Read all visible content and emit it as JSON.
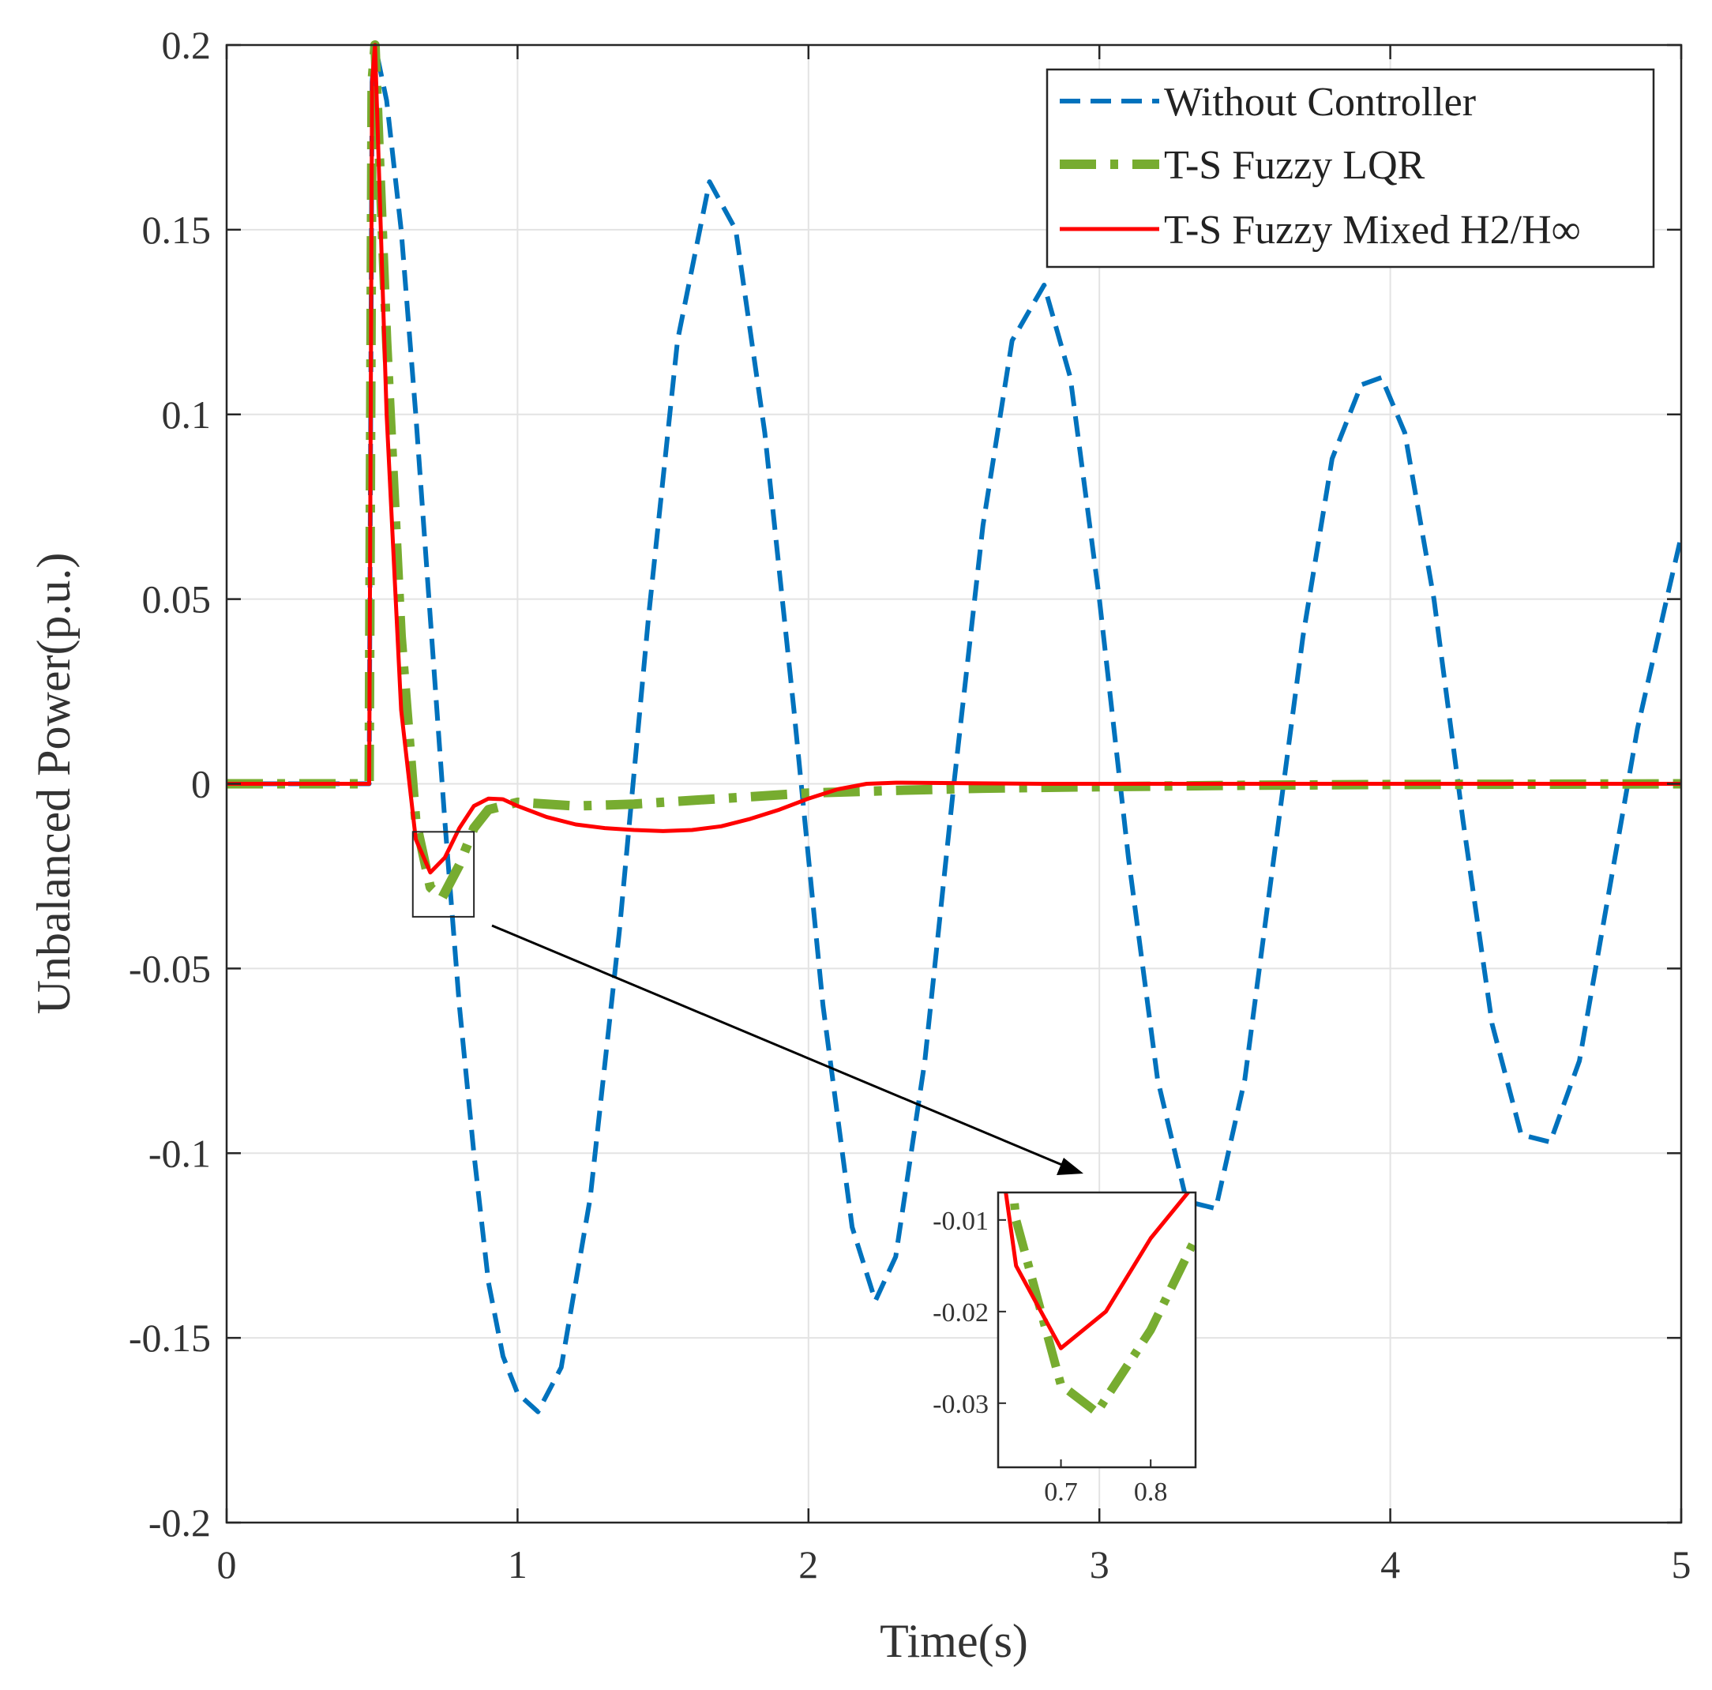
{
  "chart_data": {
    "type": "line",
    "title": "",
    "xlabel": "Time(s)",
    "ylabel": "Unbalanced Power(p.u.)",
    "xlim": [
      0,
      5
    ],
    "ylim": [
      -0.2,
      0.2
    ],
    "xticks": [
      "0",
      "1",
      "2",
      "3",
      "4",
      "5"
    ],
    "yticks": [
      "0.2",
      "0.15",
      "0.1",
      "0.05",
      "0",
      "-0.05",
      "-0.1",
      "-0.15",
      "-0.2"
    ],
    "grid": true,
    "legend_position": "top-right",
    "series": [
      {
        "name": "Without Controller",
        "color": "#0072BD",
        "style": "dashed",
        "x": [
          0,
          0.49,
          0.5,
          0.51,
          0.55,
          0.6,
          0.65,
          0.7,
          0.75,
          0.8,
          0.85,
          0.9,
          0.95,
          1.0,
          1.07,
          1.15,
          1.25,
          1.35,
          1.45,
          1.55,
          1.66,
          1.75,
          1.85,
          1.95,
          2.05,
          2.15,
          2.23,
          2.3,
          2.4,
          2.5,
          2.6,
          2.7,
          2.81,
          2.9,
          3.0,
          3.1,
          3.2,
          3.3,
          3.4,
          3.5,
          3.6,
          3.7,
          3.8,
          3.9,
          3.97,
          4.05,
          4.15,
          4.25,
          4.35,
          4.45,
          4.55,
          4.65,
          4.75,
          4.85,
          4.95,
          5.0
        ],
        "y": [
          0,
          0,
          0.19,
          0.2,
          0.185,
          0.15,
          0.1,
          0.045,
          -0.01,
          -0.06,
          -0.1,
          -0.135,
          -0.155,
          -0.165,
          -0.17,
          -0.158,
          -0.112,
          -0.04,
          0.045,
          0.12,
          0.163,
          0.15,
          0.095,
          0.02,
          -0.06,
          -0.12,
          -0.14,
          -0.128,
          -0.075,
          0.0,
          0.07,
          0.12,
          0.135,
          0.11,
          0.05,
          -0.02,
          -0.08,
          -0.113,
          -0.115,
          -0.08,
          -0.02,
          0.04,
          0.088,
          0.108,
          0.11,
          0.095,
          0.05,
          -0.01,
          -0.065,
          -0.095,
          -0.097,
          -0.075,
          -0.03,
          0.015,
          0.05,
          0.067
        ]
      },
      {
        "name": "T-S Fuzzy LQR",
        "color": "#77AC30",
        "style": "dash-dot",
        "x": [
          0,
          0.49,
          0.5,
          0.51,
          0.55,
          0.6,
          0.65,
          0.7,
          0.74,
          0.8,
          0.85,
          0.9,
          1.0,
          1.2,
          1.4,
          1.6,
          1.8,
          2.0,
          2.3,
          2.6,
          3.0,
          3.5,
          4.0,
          4.5,
          5.0
        ],
        "y": [
          0,
          0,
          0.19,
          0.2,
          0.12,
          0.04,
          -0.01,
          -0.028,
          -0.031,
          -0.022,
          -0.012,
          -0.007,
          -0.005,
          -0.006,
          -0.0055,
          -0.0045,
          -0.0035,
          -0.0025,
          -0.0018,
          -0.0012,
          -0.0008,
          -0.0004,
          -0.0002,
          -0.0001,
          0
        ]
      },
      {
        "name": "T-S Fuzzy Mixed H2/H∞",
        "color": "#FF0000",
        "style": "solid",
        "x": [
          0,
          0.49,
          0.5,
          0.51,
          0.55,
          0.6,
          0.65,
          0.7,
          0.75,
          0.8,
          0.85,
          0.9,
          0.95,
          1.0,
          1.1,
          1.2,
          1.3,
          1.4,
          1.5,
          1.6,
          1.7,
          1.8,
          1.9,
          2.0,
          2.1,
          2.2,
          2.3,
          2.5,
          2.8,
          3.2,
          4.0,
          5.0
        ],
        "y": [
          0,
          0,
          0.19,
          0.2,
          0.1,
          0.02,
          -0.015,
          -0.024,
          -0.02,
          -0.012,
          -0.006,
          -0.004,
          -0.0042,
          -0.006,
          -0.009,
          -0.011,
          -0.012,
          -0.0125,
          -0.0128,
          -0.0125,
          -0.0115,
          -0.0095,
          -0.007,
          -0.004,
          -0.0015,
          0.0,
          0.0003,
          0.0002,
          0.0,
          0.0,
          0.0,
          0.0
        ]
      }
    ],
    "inset": {
      "xlim": [
        0.63,
        0.85
      ],
      "ylim": [
        -0.037,
        -0.007
      ],
      "xticks": [
        "0.7",
        "0.8"
      ],
      "yticks": [
        "-0.01",
        "-0.02",
        "-0.03"
      ],
      "source_region": {
        "x": [
          0.64,
          0.85
        ],
        "y": [
          -0.036,
          -0.013
        ]
      }
    }
  }
}
